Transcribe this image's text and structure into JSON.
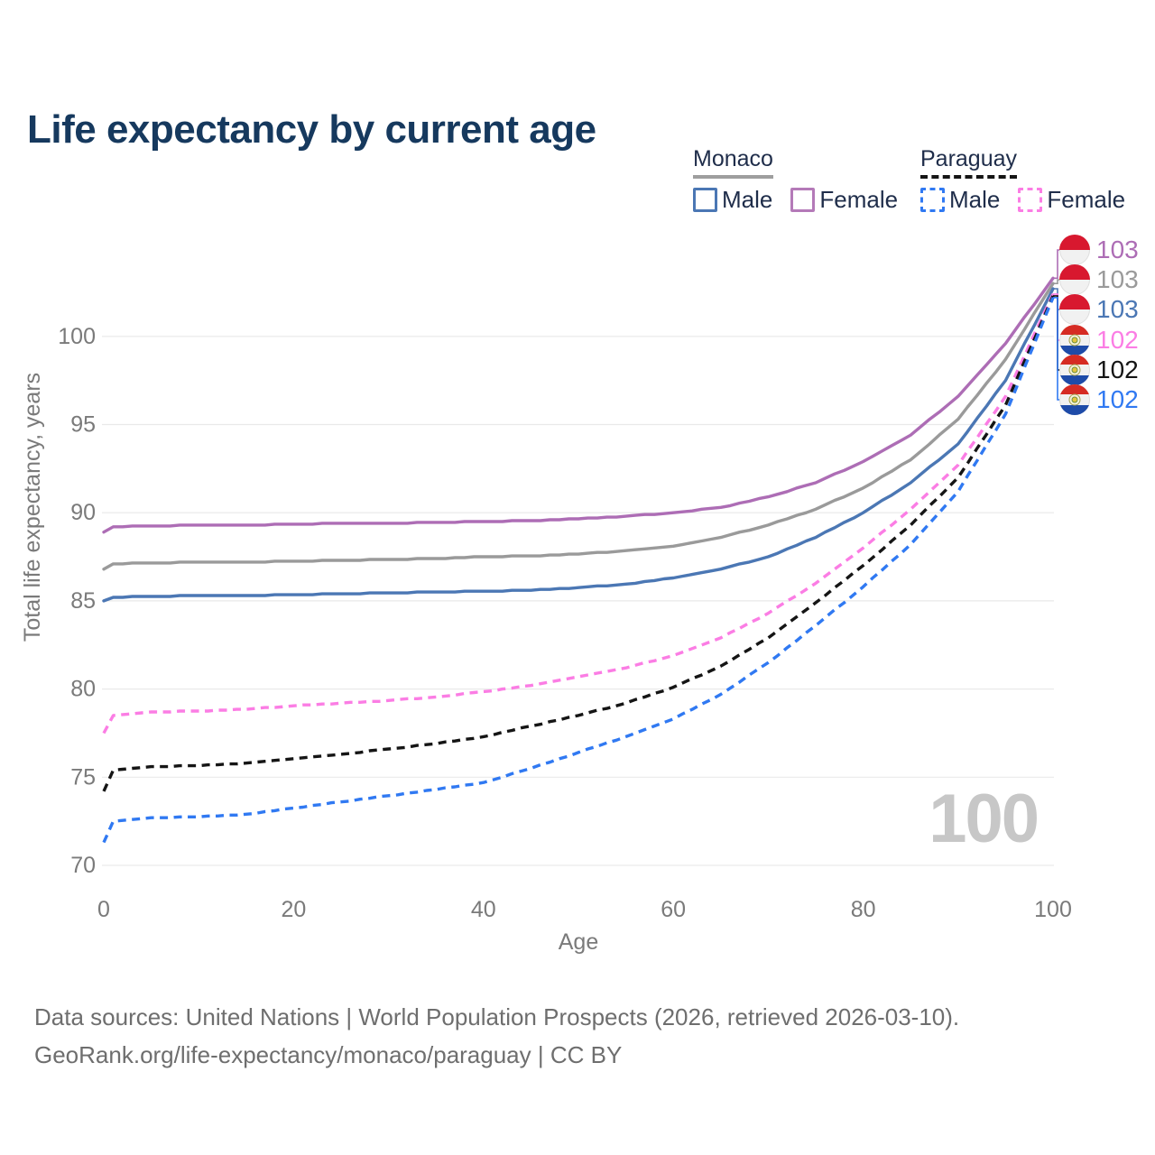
{
  "title": "Life expectancy by current age",
  "legend": {
    "groups": [
      {
        "country": "Monaco",
        "line_style": "solid",
        "line_color": "#9e9e9e",
        "items": [
          {
            "label": "Male",
            "color": "#4b77b4",
            "dashed": false
          },
          {
            "label": "Female",
            "color": "#b47ab8",
            "dashed": false
          }
        ]
      },
      {
        "country": "Paraguay",
        "line_style": "dashed",
        "line_color": "#151515",
        "items": [
          {
            "label": "Male",
            "color": "#3079f2",
            "dashed": true
          },
          {
            "label": "Female",
            "color": "#fb7de4",
            "dashed": true
          }
        ]
      }
    ]
  },
  "watermark_age": "100",
  "chart_data": {
    "type": "line",
    "title": "Life expectancy by current age",
    "xlabel": "Age",
    "ylabel": "Total life expectancy, years",
    "xlim": [
      0,
      100
    ],
    "ylim": [
      70,
      105
    ],
    "xticks": [
      0,
      20,
      40,
      60,
      80,
      100
    ],
    "yticks": [
      70,
      75,
      80,
      85,
      90,
      95,
      100
    ],
    "grid": true,
    "legend_position": "top-right",
    "series": [
      {
        "name": "Monaco Female",
        "country": "Monaco",
        "sex": "Female",
        "color": "#ad6db5",
        "dashed": false,
        "end_label": "103",
        "flag": "monaco",
        "points": [
          [
            0,
            88.9
          ],
          [
            1,
            89.2
          ],
          [
            5,
            89.25
          ],
          [
            10,
            89.3
          ],
          [
            15,
            89.3
          ],
          [
            20,
            89.35
          ],
          [
            25,
            89.4
          ],
          [
            30,
            89.4
          ],
          [
            35,
            89.45
          ],
          [
            40,
            89.5
          ],
          [
            45,
            89.55
          ],
          [
            50,
            89.65
          ],
          [
            55,
            89.8
          ],
          [
            60,
            90.0
          ],
          [
            65,
            90.3
          ],
          [
            70,
            90.9
          ],
          [
            75,
            91.7
          ],
          [
            80,
            92.9
          ],
          [
            85,
            94.4
          ],
          [
            90,
            96.6
          ],
          [
            95,
            99.6
          ],
          [
            100,
            103.3
          ]
        ]
      },
      {
        "name": "Monaco Total",
        "country": "Monaco",
        "sex": "Both",
        "color": "#9a9a9a",
        "dashed": false,
        "end_label": "103",
        "flag": "monaco",
        "points": [
          [
            0,
            86.8
          ],
          [
            1,
            87.1
          ],
          [
            5,
            87.15
          ],
          [
            10,
            87.2
          ],
          [
            15,
            87.2
          ],
          [
            20,
            87.25
          ],
          [
            25,
            87.3
          ],
          [
            30,
            87.35
          ],
          [
            35,
            87.4
          ],
          [
            40,
            87.5
          ],
          [
            45,
            87.55
          ],
          [
            50,
            87.65
          ],
          [
            55,
            87.85
          ],
          [
            60,
            88.1
          ],
          [
            65,
            88.6
          ],
          [
            70,
            89.3
          ],
          [
            75,
            90.2
          ],
          [
            80,
            91.4
          ],
          [
            85,
            93.0
          ],
          [
            90,
            95.3
          ],
          [
            95,
            98.7
          ],
          [
            100,
            103.0
          ]
        ]
      },
      {
        "name": "Monaco Male",
        "country": "Monaco",
        "sex": "Male",
        "color": "#4b77b4",
        "dashed": false,
        "end_label": "103",
        "flag": "monaco",
        "points": [
          [
            0,
            85.0
          ],
          [
            1,
            85.2
          ],
          [
            5,
            85.25
          ],
          [
            10,
            85.3
          ],
          [
            15,
            85.3
          ],
          [
            20,
            85.35
          ],
          [
            25,
            85.4
          ],
          [
            30,
            85.45
          ],
          [
            35,
            85.5
          ],
          [
            40,
            85.55
          ],
          [
            45,
            85.6
          ],
          [
            50,
            85.75
          ],
          [
            55,
            85.95
          ],
          [
            60,
            86.3
          ],
          [
            65,
            86.8
          ],
          [
            70,
            87.5
          ],
          [
            75,
            88.6
          ],
          [
            80,
            90.0
          ],
          [
            85,
            91.7
          ],
          [
            90,
            93.9
          ],
          [
            95,
            97.5
          ],
          [
            100,
            102.7
          ]
        ]
      },
      {
        "name": "Paraguay Female",
        "country": "Paraguay",
        "sex": "Female",
        "color": "#fb7de4",
        "dashed": true,
        "end_label": "102",
        "flag": "paraguay",
        "points": [
          [
            0,
            77.5
          ],
          [
            1,
            78.5
          ],
          [
            5,
            78.7
          ],
          [
            10,
            78.75
          ],
          [
            15,
            78.85
          ],
          [
            20,
            79.05
          ],
          [
            25,
            79.2
          ],
          [
            30,
            79.35
          ],
          [
            35,
            79.55
          ],
          [
            40,
            79.85
          ],
          [
            45,
            80.2
          ],
          [
            50,
            80.7
          ],
          [
            55,
            81.2
          ],
          [
            60,
            81.9
          ],
          [
            65,
            82.9
          ],
          [
            70,
            84.3
          ],
          [
            75,
            86.0
          ],
          [
            80,
            88.0
          ],
          [
            85,
            90.2
          ],
          [
            90,
            92.7
          ],
          [
            95,
            96.6
          ],
          [
            100,
            102.4
          ]
        ]
      },
      {
        "name": "Paraguay Total",
        "country": "Paraguay",
        "sex": "Both",
        "color": "#151515",
        "dashed": true,
        "end_label": "102",
        "flag": "paraguay",
        "points": [
          [
            0,
            74.2
          ],
          [
            1,
            75.4
          ],
          [
            5,
            75.6
          ],
          [
            10,
            75.65
          ],
          [
            15,
            75.8
          ],
          [
            20,
            76.05
          ],
          [
            25,
            76.3
          ],
          [
            30,
            76.6
          ],
          [
            35,
            76.9
          ],
          [
            40,
            77.3
          ],
          [
            45,
            77.9
          ],
          [
            50,
            78.5
          ],
          [
            55,
            79.2
          ],
          [
            60,
            80.1
          ],
          [
            65,
            81.3
          ],
          [
            70,
            82.9
          ],
          [
            75,
            84.9
          ],
          [
            80,
            87.0
          ],
          [
            85,
            89.3
          ],
          [
            90,
            92.0
          ],
          [
            95,
            96.1
          ],
          [
            100,
            102.3
          ]
        ]
      },
      {
        "name": "Paraguay Male",
        "country": "Paraguay",
        "sex": "Male",
        "color": "#3079f2",
        "dashed": true,
        "end_label": "102",
        "flag": "paraguay",
        "points": [
          [
            0,
            71.3
          ],
          [
            1,
            72.5
          ],
          [
            5,
            72.7
          ],
          [
            10,
            72.75
          ],
          [
            15,
            72.9
          ],
          [
            20,
            73.25
          ],
          [
            25,
            73.6
          ],
          [
            30,
            73.95
          ],
          [
            35,
            74.3
          ],
          [
            40,
            74.7
          ],
          [
            45,
            75.5
          ],
          [
            50,
            76.4
          ],
          [
            55,
            77.3
          ],
          [
            60,
            78.3
          ],
          [
            65,
            79.7
          ],
          [
            70,
            81.5
          ],
          [
            75,
            83.6
          ],
          [
            80,
            85.8
          ],
          [
            85,
            88.2
          ],
          [
            90,
            91.2
          ],
          [
            95,
            95.6
          ],
          [
            100,
            102.2
          ]
        ]
      }
    ]
  },
  "footer": {
    "line1": "Data sources: United Nations | World Population Prospects (2026, retrieved 2026-03-10).",
    "line2": "GeoRank.org/life-expectancy/monaco/paraguay | CC BY"
  }
}
